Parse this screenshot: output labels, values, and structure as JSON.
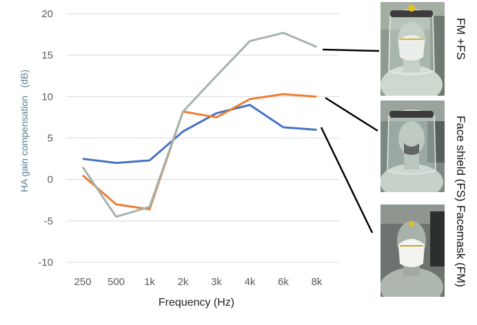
{
  "chart_data": {
    "type": "line",
    "categories": [
      "250",
      "500",
      "1k",
      "2k",
      "3k",
      "4k",
      "6k",
      "8k"
    ],
    "xlabel": "Frequency (Hz)",
    "ylabel": "HA gain compensation   (dB)",
    "ylim": [
      -10,
      20
    ],
    "yticks": [
      20,
      15,
      10,
      5,
      0,
      -5,
      -10
    ],
    "grid": true,
    "series": [
      {
        "name": "Facemask (FM)",
        "color": "#4472c4",
        "values": [
          2.5,
          2.0,
          2.3,
          5.8,
          8.0,
          9.0,
          6.3,
          6.0
        ]
      },
      {
        "name": "Face shield (FS)",
        "color": "#ed7d31",
        "values": [
          0.5,
          -3.0,
          -3.6,
          8.2,
          7.5,
          9.7,
          10.3,
          10.0
        ]
      },
      {
        "name": "FM +FS",
        "color": "#a5b3ad",
        "values": [
          1.5,
          -4.5,
          -3.3,
          8.2,
          12.5,
          16.7,
          17.7,
          16.0
        ]
      }
    ]
  },
  "photos": [
    {
      "label": "FM +FS",
      "icon": "manikin-facemask-faceshield-photo"
    },
    {
      "label": "Face shield (FS)",
      "icon": "manikin-faceshield-photo"
    },
    {
      "label": "Facemask (FM)",
      "icon": "manikin-facemask-photo"
    }
  ]
}
